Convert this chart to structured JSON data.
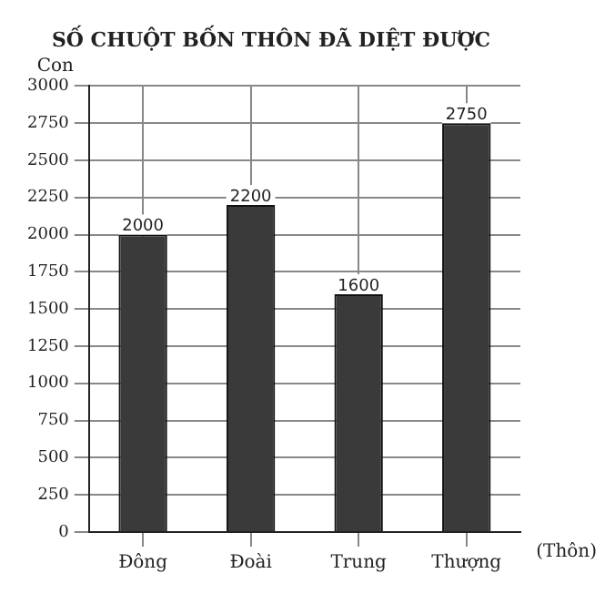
{
  "chart_data": {
    "type": "bar",
    "title": "SỐ CHUỘT BỐN THÔN ĐÃ DIỆT ĐƯỢC",
    "xlabel": "(Thôn)",
    "ylabel": "Con",
    "categories": [
      "Đông",
      "Đoài",
      "Trung",
      "Thượng"
    ],
    "values": [
      2000,
      2200,
      1600,
      2750
    ],
    "color": "#3a3a3a",
    "ylim": [
      0,
      3000
    ],
    "yticks": [
      0,
      250,
      500,
      750,
      1000,
      1250,
      1500,
      1750,
      2000,
      2250,
      2500,
      2750,
      3000
    ],
    "grid": true,
    "data_labels": true
  }
}
